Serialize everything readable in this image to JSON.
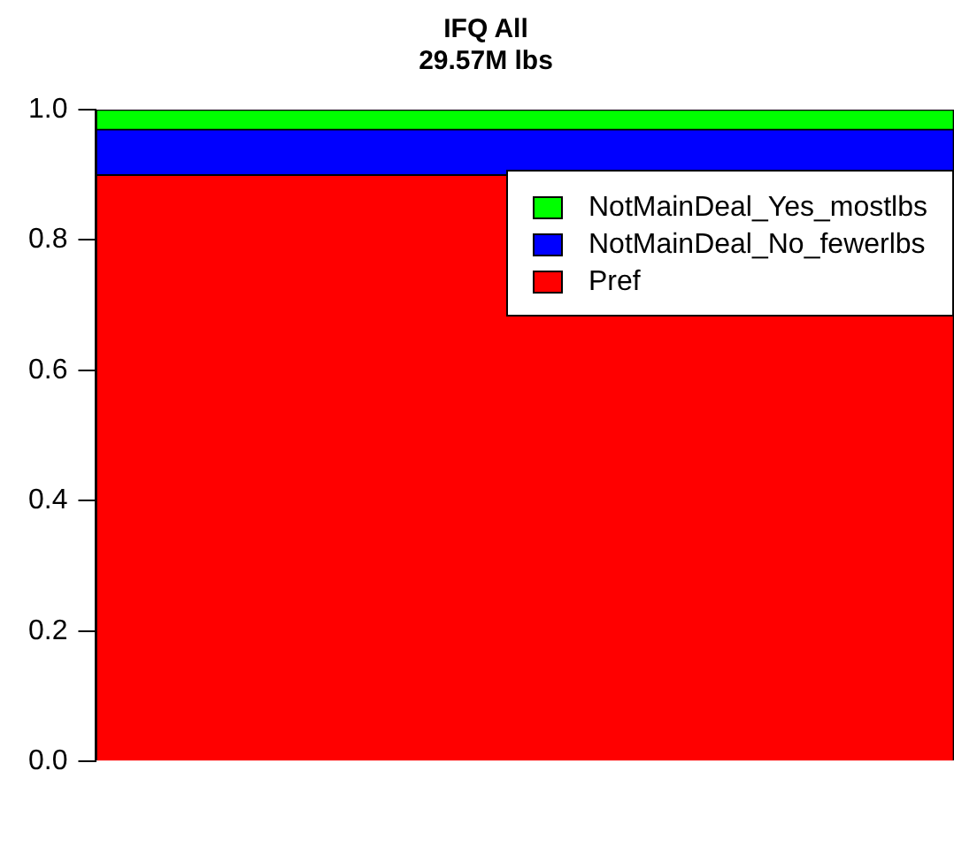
{
  "chart_data": {
    "type": "bar",
    "title": "IFQ All",
    "subtitle": "29.57M lbs",
    "categories": [
      null
    ],
    "stacked": true,
    "series": [
      {
        "name": "Pref",
        "color": "#ff0000",
        "values": [
          0.9
        ]
      },
      {
        "name": "NotMainDeal_No_fewerlbs",
        "color": "#0000ff",
        "values": [
          0.07
        ]
      },
      {
        "name": "NotMainDeal_Yes_mostlbs",
        "color": "#00ff00",
        "values": [
          0.03
        ]
      }
    ],
    "ylim": [
      0,
      1
    ],
    "yticks": [
      {
        "value": 0,
        "label": "0.0"
      },
      0.2,
      0.4,
      0.6,
      0.8,
      {
        "value": 1,
        "label": "1.0"
      }
    ],
    "grid": false,
    "legend": "top right"
  }
}
